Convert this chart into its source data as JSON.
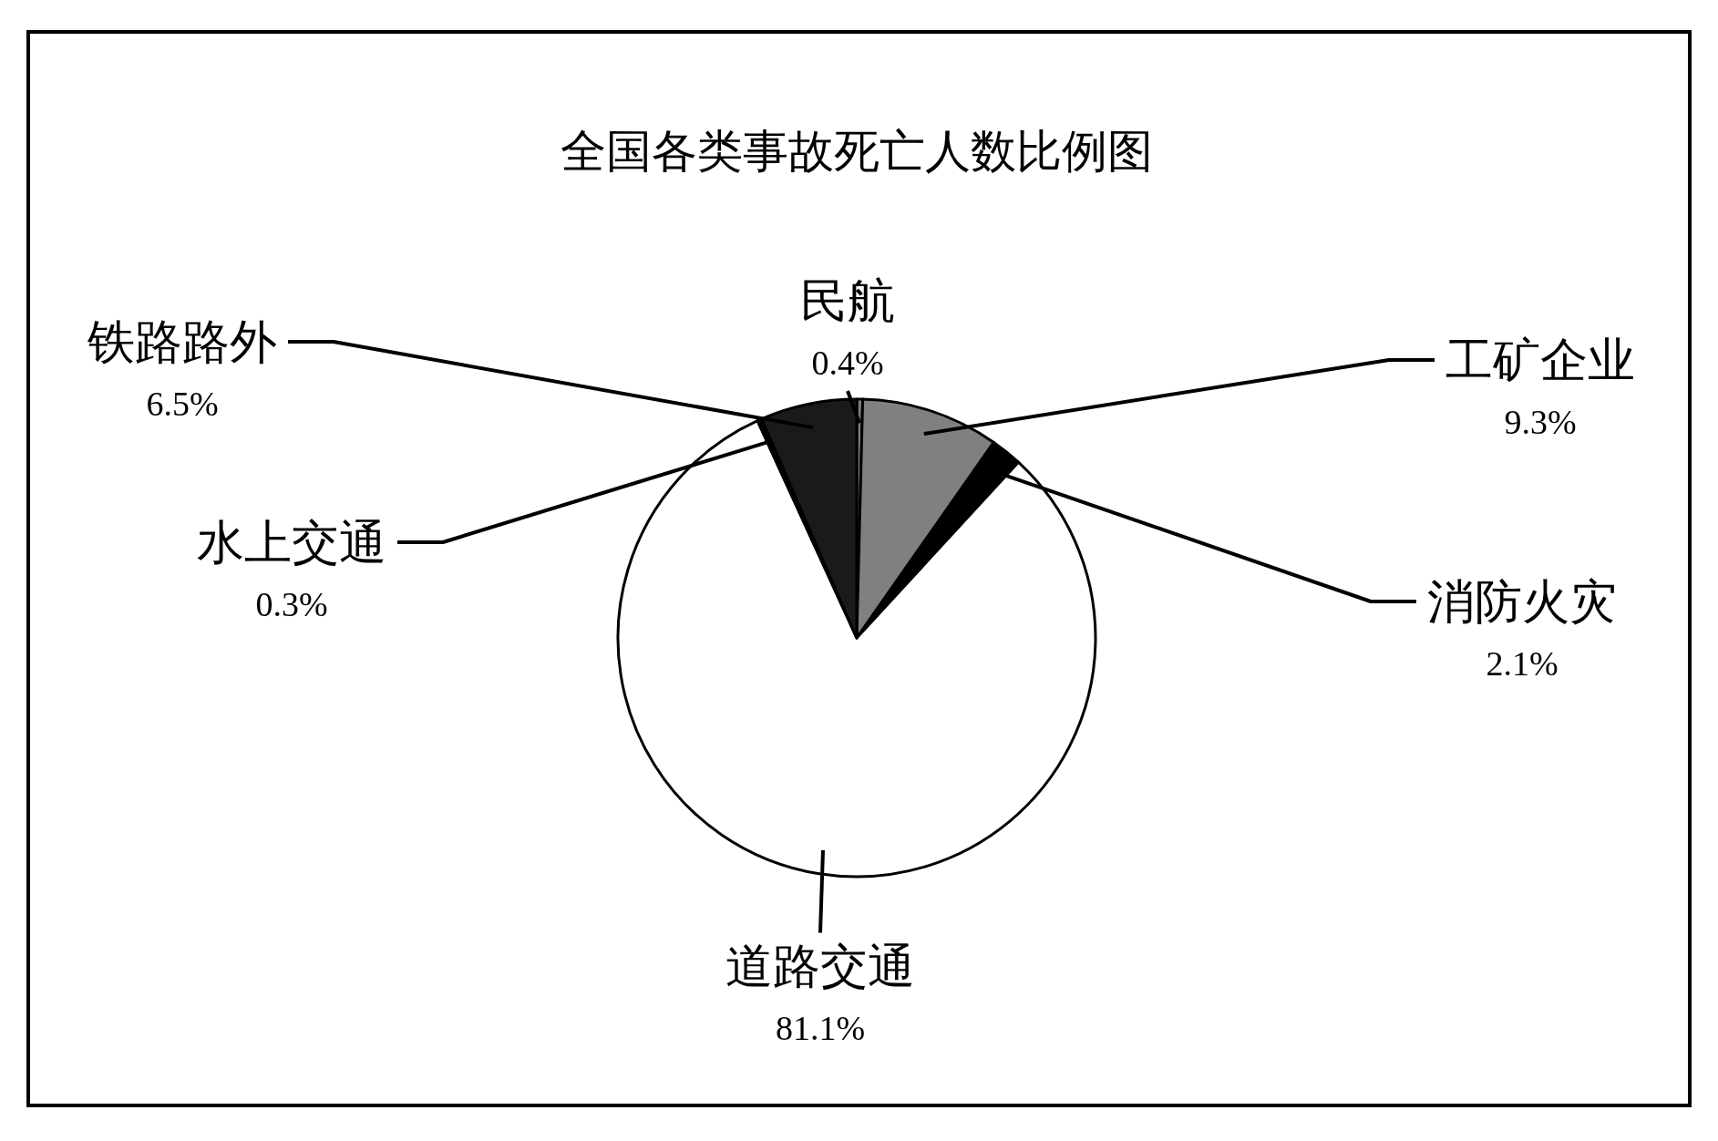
{
  "chart_data": {
    "type": "pie",
    "title": "全国各类事故死亡人数比例图",
    "categories": [
      "民航",
      "工矿企业",
      "消防火灾",
      "道路交通",
      "水上交通",
      "铁路路外"
    ],
    "values": [
      0.4,
      9.3,
      2.1,
      81.1,
      0.3,
      6.5
    ],
    "value_labels": [
      "0.4%",
      "9.3%",
      "2.1%",
      "81.1%",
      "0.3%",
      "6.5%"
    ],
    "colors": [
      "#808080",
      "#808080",
      "#000000",
      "#ffffff",
      "#000000",
      "#1a1a1a"
    ]
  }
}
